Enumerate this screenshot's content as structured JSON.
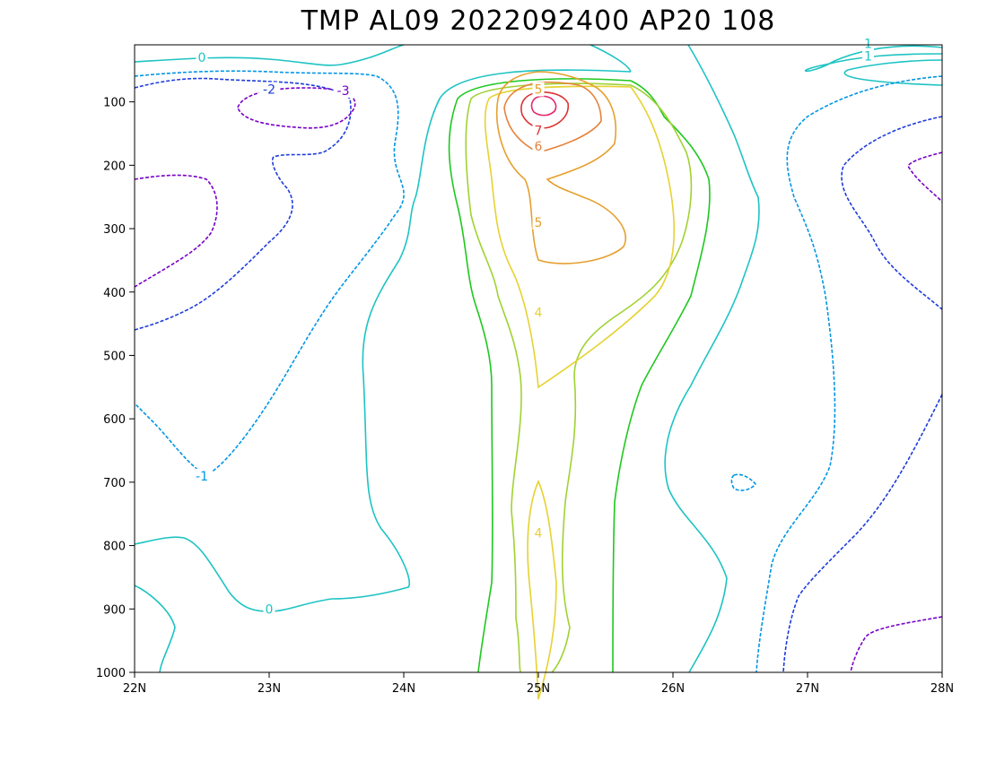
{
  "chart_data": {
    "type": "contour",
    "title": "TMP AL09 2022092400 AP20 108",
    "xlabel": "",
    "ylabel": "",
    "x_ticks": [
      "22N",
      "23N",
      "24N",
      "25N",
      "26N",
      "27N",
      "28N"
    ],
    "x_range": [
      22,
      28
    ],
    "y_ticks": [
      "100",
      "200",
      "300",
      "400",
      "500",
      "600",
      "700",
      "800",
      "900",
      "1000"
    ],
    "y_range": [
      10,
      1000
    ],
    "y_reversed": true,
    "grid": false,
    "contour_labels": [
      {
        "text": "0",
        "lat": 22.5,
        "p": 30,
        "color": "#1ec3c3"
      },
      {
        "text": "-2",
        "lat": 23.0,
        "p": 80,
        "color": "#1e3cdc"
      },
      {
        "text": "-3",
        "lat": 23.55,
        "p": 82,
        "color": "#7800c8"
      },
      {
        "text": "1",
        "lat": 27.45,
        "p": 28,
        "color": "#1ec3c3"
      },
      {
        "text": "1",
        "lat": 27.45,
        "p": 8,
        "color": "#1ec3c3"
      },
      {
        "text": "5",
        "lat": 25.0,
        "p": 80,
        "color": "#e6a02e"
      },
      {
        "text": "7",
        "lat": 25.0,
        "p": 145,
        "color": "#dc3232"
      },
      {
        "text": "6",
        "lat": 25.0,
        "p": 170,
        "color": "#e6823c"
      },
      {
        "text": "5",
        "lat": 25.0,
        "p": 290,
        "color": "#e6a02e"
      },
      {
        "text": "4",
        "lat": 25.0,
        "p": 432,
        "color": "#e6d232"
      },
      {
        "text": "-1",
        "lat": 22.5,
        "p": 690,
        "color": "#0096e6"
      },
      {
        "text": "4",
        "lat": 25.0,
        "p": 780,
        "color": "#e6d232"
      },
      {
        "text": "0",
        "lat": 23.0,
        "p": 900,
        "color": "#1ec3c3"
      }
    ]
  }
}
